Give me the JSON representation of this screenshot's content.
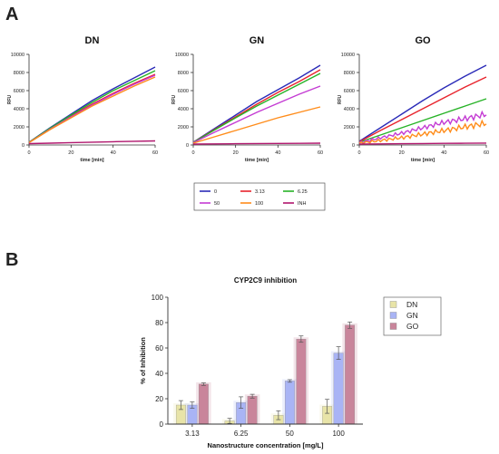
{
  "panels": [
    {
      "letter": "A"
    },
    {
      "letter": "B"
    }
  ],
  "colors": {
    "0": "#2b2bb8",
    "3.13": "#e8232c",
    "6.25": "#27b327",
    "50": "#c43bd3",
    "100": "#ff8c1a",
    "INH": "#b0166d",
    "DN": "#e8e4a8",
    "GN": "#a9b4f5",
    "GO": "#c9859b"
  },
  "chart_data": [
    {
      "type": "line",
      "title": "DN",
      "xlabel": "time [min]",
      "ylabel": "RFU",
      "xlim": [
        0,
        60
      ],
      "ylim": [
        0,
        10000
      ],
      "xticks": [
        "0",
        "20",
        "40",
        "60"
      ],
      "yticks": [
        "0",
        "2000",
        "4000",
        "6000",
        "8000",
        "10000"
      ],
      "x": [
        0,
        10,
        20,
        30,
        40,
        50,
        60
      ],
      "series": [
        {
          "name": "0",
          "values": [
            300,
            1900,
            3400,
            4900,
            6200,
            7400,
            8600
          ]
        },
        {
          "name": "3.13",
          "values": [
            280,
            1800,
            3200,
            4500,
            5700,
            6800,
            7800
          ]
        },
        {
          "name": "6.25",
          "values": [
            290,
            1850,
            3300,
            4700,
            6000,
            7100,
            8200
          ]
        },
        {
          "name": "50",
          "values": [
            270,
            1750,
            3100,
            4400,
            5600,
            6700,
            7700
          ]
        },
        {
          "name": "100",
          "values": [
            260,
            1700,
            3000,
            4300,
            5400,
            6500,
            7500
          ]
        },
        {
          "name": "INH",
          "values": [
            150,
            200,
            260,
            310,
            360,
            410,
            450
          ]
        }
      ]
    },
    {
      "type": "line",
      "title": "GN",
      "xlabel": "time [min]",
      "ylabel": "RFU",
      "xlim": [
        0,
        60
      ],
      "ylim": [
        0,
        10000
      ],
      "xticks": [
        "0",
        "20",
        "40",
        "60"
      ],
      "yticks": [
        "0",
        "2000",
        "4000",
        "6000",
        "8000",
        "10000"
      ],
      "x": [
        0,
        10,
        20,
        30,
        40,
        50,
        60
      ],
      "series": [
        {
          "name": "0",
          "values": [
            300,
            1800,
            3300,
            4800,
            6100,
            7400,
            8800
          ]
        },
        {
          "name": "3.13",
          "values": [
            290,
            1700,
            3100,
            4500,
            5800,
            7000,
            8300
          ]
        },
        {
          "name": "6.25",
          "values": [
            280,
            1650,
            3000,
            4300,
            5500,
            6700,
            7900
          ]
        },
        {
          "name": "50",
          "values": [
            250,
            1400,
            2500,
            3600,
            4600,
            5600,
            6500
          ]
        },
        {
          "name": "100",
          "values": [
            200,
            900,
            1600,
            2300,
            3000,
            3600,
            4200
          ]
        },
        {
          "name": "INH",
          "values": [
            100,
            120,
            140,
            160,
            170,
            180,
            200
          ]
        }
      ]
    },
    {
      "type": "line",
      "title": "GO",
      "xlabel": "time [min]",
      "ylabel": "RFU",
      "xlim": [
        0,
        60
      ],
      "ylim": [
        0,
        10000
      ],
      "xticks": [
        "0",
        "20",
        "40",
        "60"
      ],
      "yticks": [
        "0",
        "2000",
        "4000",
        "6000",
        "8000",
        "10000"
      ],
      "x": [
        0,
        10,
        20,
        30,
        40,
        50,
        60
      ],
      "series": [
        {
          "name": "0",
          "values": [
            400,
            1900,
            3400,
            4900,
            6300,
            7600,
            8800
          ]
        },
        {
          "name": "3.13",
          "values": [
            350,
            1600,
            2800,
            4000,
            5200,
            6400,
            7500
          ]
        },
        {
          "name": "6.25",
          "values": [
            300,
            1100,
            1900,
            2700,
            3500,
            4300,
            5100
          ]
        },
        {
          "name": "50",
          "values": [
            250,
            800,
            1300,
            1900,
            2500,
            2900,
            3400
          ]
        },
        {
          "name": "100",
          "values": [
            200,
            500,
            800,
            1200,
            1600,
            2000,
            2400
          ]
        },
        {
          "name": "INH",
          "values": [
            100,
            120,
            140,
            160,
            180,
            190,
            210
          ]
        }
      ]
    },
    {
      "type": "bar",
      "title": "CYP2C9 inhibition",
      "xlabel": "Nanostructure concentration [mg/L]",
      "ylabel": "% of Inhibition",
      "ylim": [
        0,
        100
      ],
      "yticks": [
        "0",
        "20",
        "40",
        "60",
        "80",
        "100"
      ],
      "categories": [
        "3.13",
        "6.25",
        "50",
        "100"
      ],
      "series": [
        {
          "name": "DN",
          "values": [
            15,
            2.5,
            7,
            14
          ],
          "errors": [
            3.5,
            2,
            3.5,
            5.5
          ]
        },
        {
          "name": "GN",
          "values": [
            15,
            17,
            34,
            56
          ],
          "errors": [
            2.5,
            4.5,
            1,
            5
          ]
        },
        {
          "name": "GO",
          "values": [
            31.5,
            22,
            67,
            78
          ],
          "errors": [
            1,
            1.5,
            2.5,
            2.5
          ]
        }
      ]
    }
  ]
}
